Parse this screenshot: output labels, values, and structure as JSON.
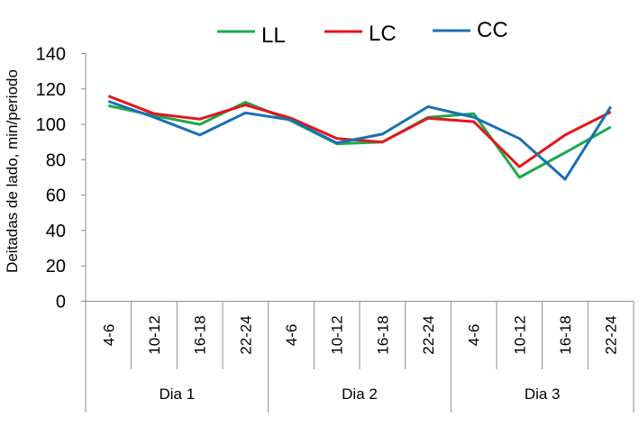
{
  "chart_data": {
    "type": "line",
    "title": "",
    "xlabel": "",
    "ylabel": "Deitadas de lado, min/periodo",
    "ylim": [
      0,
      140
    ],
    "yticks": [
      0,
      20,
      40,
      60,
      80,
      100,
      120,
      140
    ],
    "grid": false,
    "legend_position": "top",
    "groups": [
      {
        "label": "Dia 1",
        "categories": [
          "4-6",
          "10-12",
          "16-18",
          "22-24"
        ]
      },
      {
        "label": "Dia 2",
        "categories": [
          "4-6",
          "10-12",
          "16-18",
          "22-24"
        ]
      },
      {
        "label": "Dia 3",
        "categories": [
          "4-6",
          "10-12",
          "16-18",
          "22-24"
        ]
      }
    ],
    "categories": [
      "4-6",
      "10-12",
      "16-18",
      "22-24",
      "4-6",
      "10-12",
      "16-18",
      "22-24",
      "4-6",
      "10-12",
      "16-18",
      "22-24"
    ],
    "series": [
      {
        "name": "LL",
        "color": "#1aab4b",
        "values": [
          110.5,
          105,
          100,
          112.5,
          102,
          89,
          90,
          104,
          106,
          70,
          84,
          98.5
        ]
      },
      {
        "name": "LC",
        "color": "#e3161b",
        "values": [
          116,
          106,
          103,
          111,
          103.5,
          92,
          90,
          103.5,
          101.5,
          76,
          94,
          107
        ]
      },
      {
        "name": "CC",
        "color": "#1a6fb5",
        "values": [
          113,
          104,
          94,
          106.5,
          102.5,
          89.5,
          94.5,
          110,
          104,
          92,
          69,
          110
        ]
      }
    ]
  }
}
